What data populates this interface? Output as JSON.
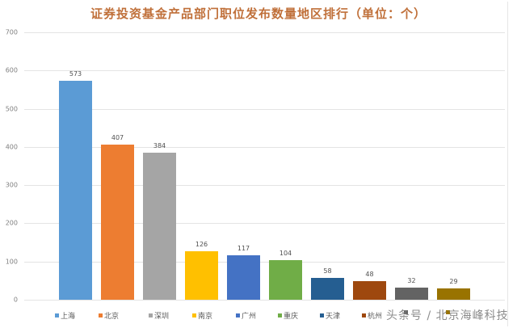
{
  "chart_data": {
    "type": "bar",
    "title": "证券投资基金产品部门职位发布数量地区排行（单位：个）",
    "xlabel": "",
    "ylabel": "",
    "ylim": [
      0,
      700
    ],
    "yticks": [
      0,
      100,
      200,
      300,
      400,
      500,
      600,
      700
    ],
    "grid": true,
    "legend_position": "bottom",
    "categories": [
      "上海",
      "北京",
      "深圳",
      "南京",
      "广州",
      "重庆",
      "天津",
      "杭州",
      "",
      ""
    ],
    "values": [
      573,
      407,
      384,
      126,
      117,
      104,
      58,
      48,
      32,
      29
    ],
    "colors": [
      "#5B9BD5",
      "#ED7D31",
      "#A5A5A5",
      "#FFC000",
      "#4472C4",
      "#70AD47",
      "#255E91",
      "#9E480E",
      "#636363",
      "#997300"
    ],
    "data_labels": [
      "573",
      "407",
      "384",
      "126",
      "117",
      "104",
      "58",
      "48",
      "32",
      "29"
    ]
  },
  "ytick_labels": [
    "0",
    "100",
    "200",
    "300",
    "400",
    "500",
    "600",
    "700"
  ],
  "watermark": "头条号 / 北京海峰科技"
}
